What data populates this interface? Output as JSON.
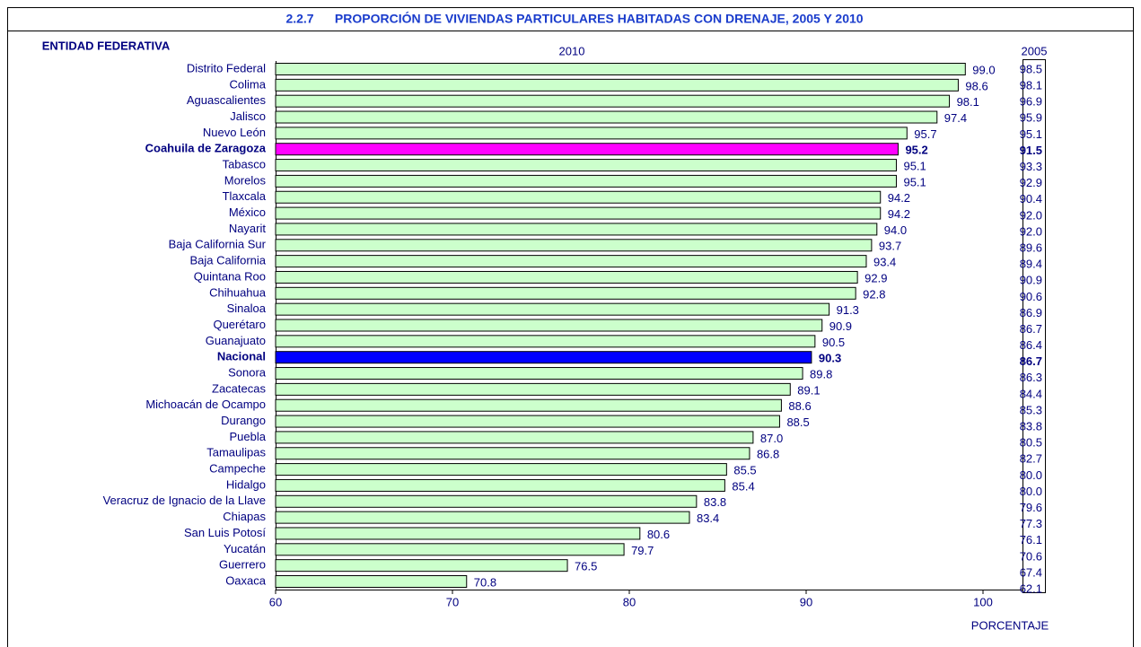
{
  "chart_data": {
    "type": "bar",
    "orientation": "horizontal",
    "title": "2.2.7      PROPORCIÓN DE VIVIENDAS PARTICULARES HABITADAS CON DRENAJE, 2005 Y 2010",
    "category_header": "ENTIDAD FEDERATIVA",
    "series_header": "2010",
    "xlabel": "PORCENTAJE",
    "categories": [
      "Distrito Federal",
      "Colima",
      "Aguascalientes",
      "Jalisco",
      "Nuevo León",
      "Coahuila de Zaragoza",
      "Tabasco",
      "Morelos",
      "Tlaxcala",
      "México",
      "Nayarit",
      "Baja California Sur",
      "Baja California",
      "Quintana Roo",
      "Chihuahua",
      "Sinaloa",
      "Querétaro",
      "Guanajuato",
      "Nacional",
      "Sonora",
      "Zacatecas",
      "Michoacán de Ocampo",
      "Durango",
      "Puebla",
      "Tamaulipas",
      "Campeche",
      "Hidalgo",
      "Veracruz de Ignacio de la Llave",
      "Chiapas",
      "San Luis Potosí",
      "Yucatán",
      "Guerrero",
      "Oaxaca"
    ],
    "values": [
      99.0,
      98.6,
      98.1,
      97.4,
      95.7,
      95.2,
      95.1,
      95.1,
      94.2,
      94.2,
      94.0,
      93.7,
      93.4,
      92.9,
      92.8,
      91.3,
      90.9,
      90.5,
      90.3,
      89.8,
      89.1,
      88.6,
      88.5,
      87.0,
      86.8,
      85.5,
      85.4,
      83.8,
      83.4,
      80.6,
      79.7,
      76.5,
      70.8
    ],
    "value_labels": [
      "99.0",
      "98.6",
      "98.1",
      "97.4",
      "95.7",
      "95.2",
      "95.1",
      "95.1",
      "94.2",
      "94.2",
      "94.0",
      "93.7",
      "93.4",
      "92.9",
      "92.8",
      "91.3",
      "90.9",
      "90.5",
      "90.3",
      "89.8",
      "89.1",
      "88.6",
      "88.5",
      "87.0",
      "86.8",
      "85.5",
      "85.4",
      "83.8",
      "83.4",
      "80.6",
      "79.7",
      "76.5",
      "70.8"
    ],
    "colors": [
      "#ccffcc",
      "#ccffcc",
      "#ccffcc",
      "#ccffcc",
      "#ccffcc",
      "#ff00ff",
      "#ccffcc",
      "#ccffcc",
      "#ccffcc",
      "#ccffcc",
      "#ccffcc",
      "#ccffcc",
      "#ccffcc",
      "#ccffcc",
      "#ccffcc",
      "#ccffcc",
      "#ccffcc",
      "#ccffcc",
      "#0000ff",
      "#ccffcc",
      "#ccffcc",
      "#ccffcc",
      "#ccffcc",
      "#ccffcc",
      "#ccffcc",
      "#ccffcc",
      "#ccffcc",
      "#ccffcc",
      "#ccffcc",
      "#ccffcc",
      "#ccffcc",
      "#ccffcc",
      "#ccffcc"
    ],
    "emphasis": [
      false,
      false,
      false,
      false,
      false,
      true,
      false,
      false,
      false,
      false,
      false,
      false,
      false,
      false,
      false,
      false,
      false,
      false,
      true,
      false,
      false,
      false,
      false,
      false,
      false,
      false,
      false,
      false,
      false,
      false,
      false,
      false,
      false
    ],
    "column_2005": {
      "header": "2005",
      "values": [
        98.5,
        98.1,
        96.9,
        95.9,
        95.1,
        91.5,
        93.3,
        92.9,
        90.4,
        92.0,
        92.0,
        89.6,
        89.4,
        90.9,
        90.6,
        86.9,
        86.7,
        86.4,
        86.7,
        86.3,
        84.4,
        85.3,
        83.8,
        80.5,
        82.7,
        80.0,
        80.0,
        79.6,
        77.3,
        76.1,
        70.6,
        67.4,
        62.1
      ],
      "value_labels": [
        "98.5",
        "98.1",
        "96.9",
        "95.9",
        "95.1",
        "91.5",
        "93.3",
        "92.9",
        "90.4",
        "92.0",
        "92.0",
        "89.6",
        "89.4",
        "90.9",
        "90.6",
        "86.9",
        "86.7",
        "86.4",
        "86.7",
        "86.3",
        "84.4",
        "85.3",
        "83.8",
        "80.5",
        "82.7",
        "80.0",
        "80.0",
        "79.6",
        "77.3",
        "76.1",
        "70.6",
        "67.4",
        "62.1"
      ]
    },
    "xlim": [
      60,
      102
    ],
    "xticks": [
      60,
      70,
      80,
      90,
      100
    ]
  }
}
